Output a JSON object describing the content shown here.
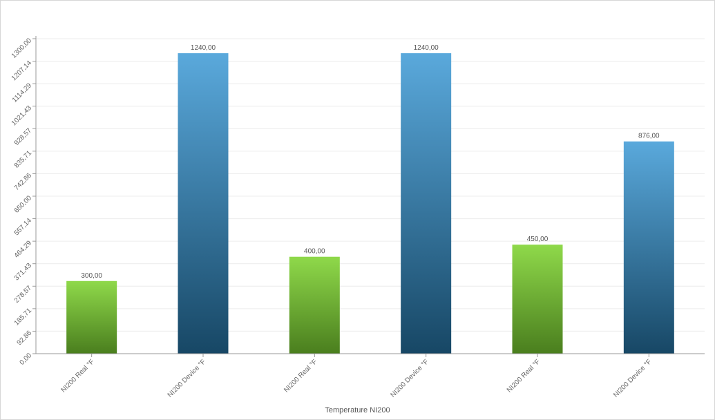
{
  "chart_data": {
    "type": "bar",
    "xlabel": "Temperature NI200",
    "ylabel": "",
    "ylim": [
      0,
      1300
    ],
    "y_ticks": [
      "0,00",
      "92,86",
      "185,71",
      "278,57",
      "371,43",
      "464,29",
      "557,14",
      "650,00",
      "742,86",
      "835,71",
      "928,57",
      "1021,43",
      "1114,29",
      "1207,14",
      "1300,00"
    ],
    "categories": [
      "NI200 Real °F",
      "NI200 Device °F",
      "NI200 Real °F",
      "NI200 Device °F",
      "NI200 Real °F",
      "NI200 Device °F"
    ],
    "values": [
      300,
      1240,
      400,
      1240,
      450,
      876
    ],
    "value_labels": [
      "300,00",
      "1240,00",
      "400,00",
      "1240,00",
      "450,00",
      "876,00"
    ],
    "bar_kinds": [
      "real",
      "device",
      "real",
      "device",
      "real",
      "device"
    ],
    "grid": true,
    "legend": "none",
    "colors": {
      "real_top": "#8fd94a",
      "real_bottom": "#4a7e1e",
      "device_top": "#5aa9dc",
      "device_bottom": "#174765"
    }
  }
}
